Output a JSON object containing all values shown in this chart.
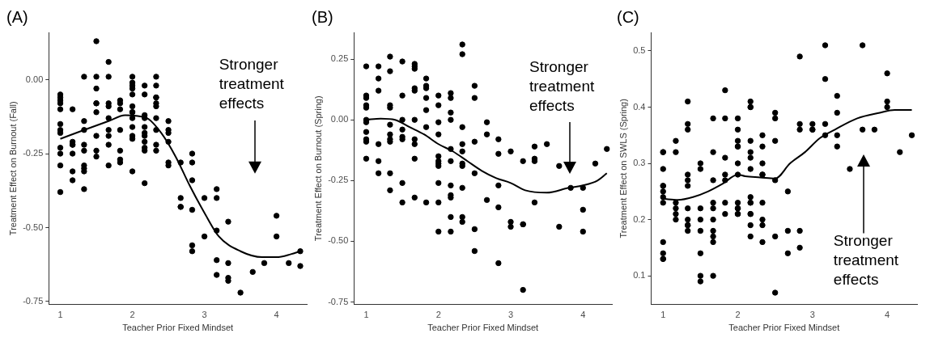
{
  "chart_data": [
    {
      "type": "scatter",
      "title": "(A)",
      "xlabel": "Teacher Prior Fixed Mindset",
      "ylabel": "Treatment Effect on Burnout (Fall)",
      "xlim": [
        0.84,
        4.42
      ],
      "xticks": [
        1,
        2,
        3,
        4
      ],
      "ylim": [
        -0.76,
        0.16
      ],
      "yticks": [
        {
          "value": -0.75,
          "label": "-0.75"
        },
        {
          "value": -0.5,
          "label": "-0.50"
        },
        {
          "value": -0.25,
          "label": "-0.25"
        },
        {
          "value": 0,
          "label": "0.00"
        }
      ],
      "grid": false,
      "legend": false,
      "annotations": [
        "Stronger treatment effects"
      ],
      "series": [
        {
          "type": "scatter",
          "marker": "circle",
          "color": "#000000",
          "x": [
            1,
            1,
            1,
            1,
            1,
            1,
            1,
            1,
            1,
            1,
            1,
            1,
            1.17,
            1.17,
            1.17,
            1.17,
            1.17,
            1.17,
            1.17,
            1.33,
            1.33,
            1.33,
            1.33,
            1.33,
            1.33,
            1.33,
            1.33,
            1.33,
            1.5,
            1.5,
            1.5,
            1.5,
            1.5,
            1.5,
            1.5,
            1.5,
            1.5,
            1.67,
            1.67,
            1.67,
            1.67,
            1.67,
            1.67,
            1.67,
            1.67,
            1.67,
            1.83,
            1.83,
            1.83,
            1.83,
            1.83,
            1.83,
            1.83,
            2,
            2,
            2,
            2,
            2,
            2,
            2,
            2,
            2,
            2,
            2,
            2,
            2,
            2.17,
            2.17,
            2.17,
            2.17,
            2.17,
            2.17,
            2.17,
            2.17,
            2.17,
            2.17,
            2.17,
            2.33,
            2.33,
            2.33,
            2.33,
            2.33,
            2.33,
            2.33,
            2.33,
            2.33,
            2.33,
            2.5,
            2.5,
            2.5,
            2.5,
            2.5,
            2.5,
            2.67,
            2.67,
            2.67,
            2.67,
            2.83,
            2.83,
            2.83,
            2.83,
            2.83,
            2.83,
            3,
            3,
            3.17,
            3.17,
            3.17,
            3.17,
            3.17,
            3.33,
            3.33,
            3.33,
            3.33,
            3.5,
            3.67,
            3.83,
            4,
            4,
            4.17,
            4.33,
            4.33
          ],
          "values": [
            -0.05,
            -0.06,
            -0.07,
            -0.08,
            -0.1,
            -0.15,
            -0.17,
            -0.18,
            -0.23,
            -0.25,
            -0.29,
            -0.38,
            -0.1,
            -0.21,
            -0.22,
            -0.22,
            -0.25,
            -0.31,
            -0.34,
            0.01,
            -0.14,
            -0.17,
            -0.22,
            -0.24,
            -0.29,
            -0.3,
            -0.31,
            -0.37,
            0.13,
            0.01,
            -0.03,
            -0.08,
            -0.08,
            -0.11,
            -0.19,
            -0.24,
            -0.26,
            0.06,
            0.01,
            -0.08,
            -0.09,
            -0.13,
            -0.17,
            -0.19,
            -0.22,
            -0.29,
            -0.07,
            -0.08,
            -0.1,
            -0.17,
            -0.24,
            -0.27,
            -0.28,
            0.01,
            -0.01,
            -0.02,
            -0.03,
            -0.05,
            -0.09,
            -0.11,
            -0.11,
            -0.13,
            -0.16,
            -0.19,
            -0.2,
            -0.31,
            -0.02,
            -0.05,
            -0.12,
            -0.13,
            -0.16,
            -0.18,
            -0.19,
            -0.21,
            -0.23,
            -0.24,
            -0.35,
            0.01,
            -0.02,
            -0.06,
            -0.06,
            -0.08,
            -0.09,
            -0.13,
            -0.17,
            -0.22,
            -0.24,
            -0.14,
            -0.17,
            -0.18,
            -0.21,
            -0.28,
            -0.29,
            -0.28,
            -0.4,
            -0.43,
            -0.43,
            -0.25,
            -0.28,
            -0.34,
            -0.44,
            -0.56,
            -0.58,
            -0.4,
            -0.53,
            -0.37,
            -0.4,
            -0.51,
            -0.61,
            -0.66,
            -0.48,
            -0.62,
            -0.67,
            -0.68,
            -0.72,
            -0.65,
            -0.62,
            -0.46,
            -0.53,
            -0.62,
            -0.58,
            -0.63
          ]
        },
        {
          "type": "line",
          "marker": "none",
          "line_style": "solid",
          "color": "#000000",
          "x": [
            1,
            1.33,
            1.67,
            1.9,
            2.2,
            2.4,
            2.6,
            2.8,
            3,
            3.2,
            3.5,
            3.8,
            4,
            4.2,
            4.33
          ],
          "values": [
            -0.2,
            -0.17,
            -0.14,
            -0.12,
            -0.13,
            -0.18,
            -0.26,
            -0.36,
            -0.45,
            -0.53,
            -0.58,
            -0.6,
            -0.6,
            -0.59,
            -0.58
          ]
        }
      ]
    },
    {
      "type": "scatter",
      "title": "(B)",
      "xlabel": "Teacher Prior Fixed Mindset",
      "ylabel": "Treatment Effect on Burnout (Spring)",
      "xlim": [
        0.83,
        4.4
      ],
      "xticks": [
        1,
        2,
        3,
        4
      ],
      "ylim": [
        -0.76,
        0.36
      ],
      "yticks": [
        {
          "value": -0.75,
          "label": "-0.75"
        },
        {
          "value": -0.5,
          "label": "-0.50"
        },
        {
          "value": -0.25,
          "label": "-0.25"
        },
        {
          "value": 0,
          "label": "0.00"
        },
        {
          "value": 0.25,
          "label": "0.25"
        }
      ],
      "grid": false,
      "legend": false,
      "annotations": [
        "Stronger treatment effects"
      ],
      "series": [
        {
          "type": "scatter",
          "marker": "circle",
          "color": "#000000",
          "x": [
            1,
            1,
            1,
            1,
            1,
            1,
            1,
            1,
            1,
            1,
            1,
            1.17,
            1.17,
            1.17,
            1.17,
            1.17,
            1.17,
            1.33,
            1.33,
            1.33,
            1.33,
            1.33,
            1.33,
            1.33,
            1.33,
            1.33,
            1.33,
            1.5,
            1.5,
            1.5,
            1.5,
            1.5,
            1.5,
            1.5,
            1.5,
            1.67,
            1.67,
            1.67,
            1.67,
            1.67,
            1.67,
            1.67,
            1.67,
            1.67,
            1.67,
            1.83,
            1.83,
            1.83,
            1.83,
            1.83,
            1.83,
            1.83,
            2,
            2,
            2,
            2,
            2,
            2,
            2,
            2,
            2,
            2,
            2,
            2.17,
            2.17,
            2.17,
            2.17,
            2.17,
            2.17,
            2.17,
            2.17,
            2.17,
            2.17,
            2.17,
            2.33,
            2.33,
            2.33,
            2.33,
            2.33,
            2.33,
            2.33,
            2.33,
            2.33,
            2.33,
            2.5,
            2.5,
            2.5,
            2.5,
            2.5,
            2.5,
            2.67,
            2.67,
            2.67,
            2.83,
            2.83,
            2.83,
            2.83,
            2.83,
            3,
            3,
            3,
            3.17,
            3.17,
            3.17,
            3.17,
            3.33,
            3.33,
            3.33,
            3.33,
            3.5,
            3.67,
            3.67,
            3.83,
            4,
            4,
            4,
            4.17,
            4.33
          ],
          "values": [
            0.22,
            0.1,
            0.09,
            0.06,
            0.05,
            0.0,
            -0.01,
            -0.05,
            -0.08,
            -0.09,
            -0.16,
            0.22,
            0.17,
            0.12,
            -0.1,
            -0.17,
            -0.22,
            0.26,
            0.2,
            0.06,
            0.05,
            -0.02,
            -0.06,
            -0.08,
            -0.09,
            -0.22,
            -0.29,
            0.24,
            0.1,
            0.0,
            -0.04,
            -0.07,
            -0.08,
            -0.26,
            -0.34,
            0.23,
            0.22,
            0.21,
            0.13,
            0.12,
            0.0,
            -0.08,
            -0.1,
            -0.16,
            -0.32,
            0.17,
            0.14,
            0.13,
            0.09,
            0.04,
            -0.03,
            -0.34,
            0.1,
            0.06,
            -0.01,
            -0.06,
            -0.15,
            -0.17,
            -0.18,
            -0.19,
            -0.26,
            -0.34,
            -0.46,
            0.11,
            0.09,
            0.03,
            0.0,
            -0.12,
            -0.17,
            -0.27,
            -0.31,
            -0.32,
            -0.4,
            -0.46,
            0.31,
            0.27,
            -0.03,
            -0.1,
            -0.13,
            -0.18,
            -0.19,
            -0.28,
            -0.4,
            -0.42,
            0.14,
            0.09,
            -0.09,
            -0.22,
            -0.45,
            -0.54,
            -0.01,
            -0.06,
            -0.33,
            -0.08,
            -0.14,
            -0.27,
            -0.36,
            -0.59,
            -0.13,
            -0.42,
            -0.44,
            -0.17,
            -0.43,
            -0.43,
            -0.7,
            -0.11,
            -0.16,
            -0.17,
            -0.34,
            -0.1,
            -0.19,
            -0.44,
            -0.28,
            -0.28,
            -0.37,
            -0.46,
            -0.18,
            -0.12
          ]
        },
        {
          "type": "line",
          "marker": "none",
          "line_style": "solid",
          "color": "#000000",
          "x": [
            1,
            1.2,
            1.4,
            1.6,
            1.8,
            2,
            2.2,
            2.4,
            2.6,
            2.8,
            3,
            3.2,
            3.5,
            3.8,
            4,
            4.2,
            4.33
          ],
          "values": [
            0.0,
            0.005,
            0.0,
            -0.03,
            -0.06,
            -0.1,
            -0.13,
            -0.17,
            -0.21,
            -0.24,
            -0.26,
            -0.29,
            -0.3,
            -0.28,
            -0.27,
            -0.25,
            -0.22
          ]
        }
      ]
    },
    {
      "type": "scatter",
      "title": "(C)",
      "xlabel": "Teacher Prior Fixed Mindset",
      "ylabel": "Treatment Effect on SWLS (Spring)",
      "xlim": [
        0.84,
        4.4
      ],
      "xticks": [
        1,
        2,
        3,
        4
      ],
      "ylim": [
        0.049,
        0.533
      ],
      "yticks": [
        0.1,
        0.2,
        0.3,
        0.4,
        0.5
      ],
      "grid": false,
      "legend": false,
      "annotations": [
        "Stronger treatment effects"
      ],
      "series": [
        {
          "type": "scatter",
          "marker": "circle",
          "color": "#000000",
          "x": [
            1,
            1,
            1,
            1,
            1,
            1,
            1,
            1,
            1,
            1,
            1,
            1,
            1.17,
            1.17,
            1.17,
            1.17,
            1.17,
            1.17,
            1.33,
            1.33,
            1.33,
            1.33,
            1.33,
            1.33,
            1.33,
            1.33,
            1.33,
            1.33,
            1.33,
            1.5,
            1.5,
            1.5,
            1.5,
            1.5,
            1.5,
            1.5,
            1.5,
            1.67,
            1.67,
            1.67,
            1.67,
            1.67,
            1.67,
            1.67,
            1.67,
            1.67,
            1.67,
            1.83,
            1.83,
            1.83,
            1.83,
            1.83,
            1.83,
            1.83,
            2,
            2,
            2,
            2,
            2,
            2,
            2,
            2,
            2,
            2,
            2,
            2,
            2.17,
            2.17,
            2.17,
            2.17,
            2.17,
            2.17,
            2.17,
            2.17,
            2.17,
            2.17,
            2.17,
            2.17,
            2.17,
            2.17,
            2.33,
            2.33,
            2.33,
            2.33,
            2.33,
            2.33,
            2.33,
            2.33,
            2.33,
            2.5,
            2.5,
            2.5,
            2.5,
            2.5,
            2.5,
            2.67,
            2.67,
            2.67,
            2.83,
            2.83,
            2.83,
            2.83,
            2.83,
            3,
            3,
            3,
            3.17,
            3.17,
            3.17,
            3.17,
            3.33,
            3.33,
            3.33,
            3.33,
            3.5,
            3.67,
            3.67,
            3.83,
            4,
            4,
            4,
            4.17,
            4.33
          ],
          "values": [
            0.32,
            0.32,
            0.29,
            0.26,
            0.26,
            0.25,
            0.24,
            0.23,
            0.16,
            0.14,
            0.13,
            0.13,
            0.34,
            0.32,
            0.23,
            0.22,
            0.21,
            0.2,
            0.41,
            0.37,
            0.36,
            0.28,
            0.27,
            0.26,
            0.22,
            0.2,
            0.19,
            0.19,
            0.18,
            0.3,
            0.29,
            0.22,
            0.2,
            0.18,
            0.14,
            0.1,
            0.09,
            0.38,
            0.32,
            0.27,
            0.23,
            0.22,
            0.2,
            0.18,
            0.17,
            0.16,
            0.1,
            0.43,
            0.38,
            0.31,
            0.28,
            0.27,
            0.23,
            0.21,
            0.38,
            0.36,
            0.34,
            0.33,
            0.33,
            0.3,
            0.28,
            0.23,
            0.22,
            0.22,
            0.21,
            0.21,
            0.41,
            0.4,
            0.4,
            0.34,
            0.32,
            0.31,
            0.29,
            0.24,
            0.23,
            0.23,
            0.21,
            0.21,
            0.19,
            0.17,
            0.35,
            0.33,
            0.3,
            0.28,
            0.28,
            0.23,
            0.2,
            0.19,
            0.16,
            0.39,
            0.38,
            0.34,
            0.27,
            0.17,
            0.07,
            0.25,
            0.18,
            0.14,
            0.49,
            0.37,
            0.36,
            0.18,
            0.15,
            0.37,
            0.36,
            0.36,
            0.51,
            0.45,
            0.37,
            0.35,
            0.42,
            0.39,
            0.35,
            0.33,
            0.29,
            0.51,
            0.36,
            0.36,
            0.46,
            0.41,
            0.4,
            0.32,
            0.35
          ]
        },
        {
          "type": "line",
          "marker": "none",
          "line_style": "solid",
          "color": "#000000",
          "x": [
            1,
            1.2,
            1.4,
            1.6,
            1.8,
            2,
            2.1,
            2.3,
            2.5,
            2.7,
            2.9,
            3.1,
            3.3,
            3.6,
            3.9,
            4.1,
            4.33
          ],
          "values": [
            0.237,
            0.235,
            0.24,
            0.25,
            0.264,
            0.28,
            0.277,
            0.275,
            0.273,
            0.3,
            0.32,
            0.345,
            0.36,
            0.38,
            0.39,
            0.395,
            0.395
          ]
        }
      ]
    }
  ]
}
